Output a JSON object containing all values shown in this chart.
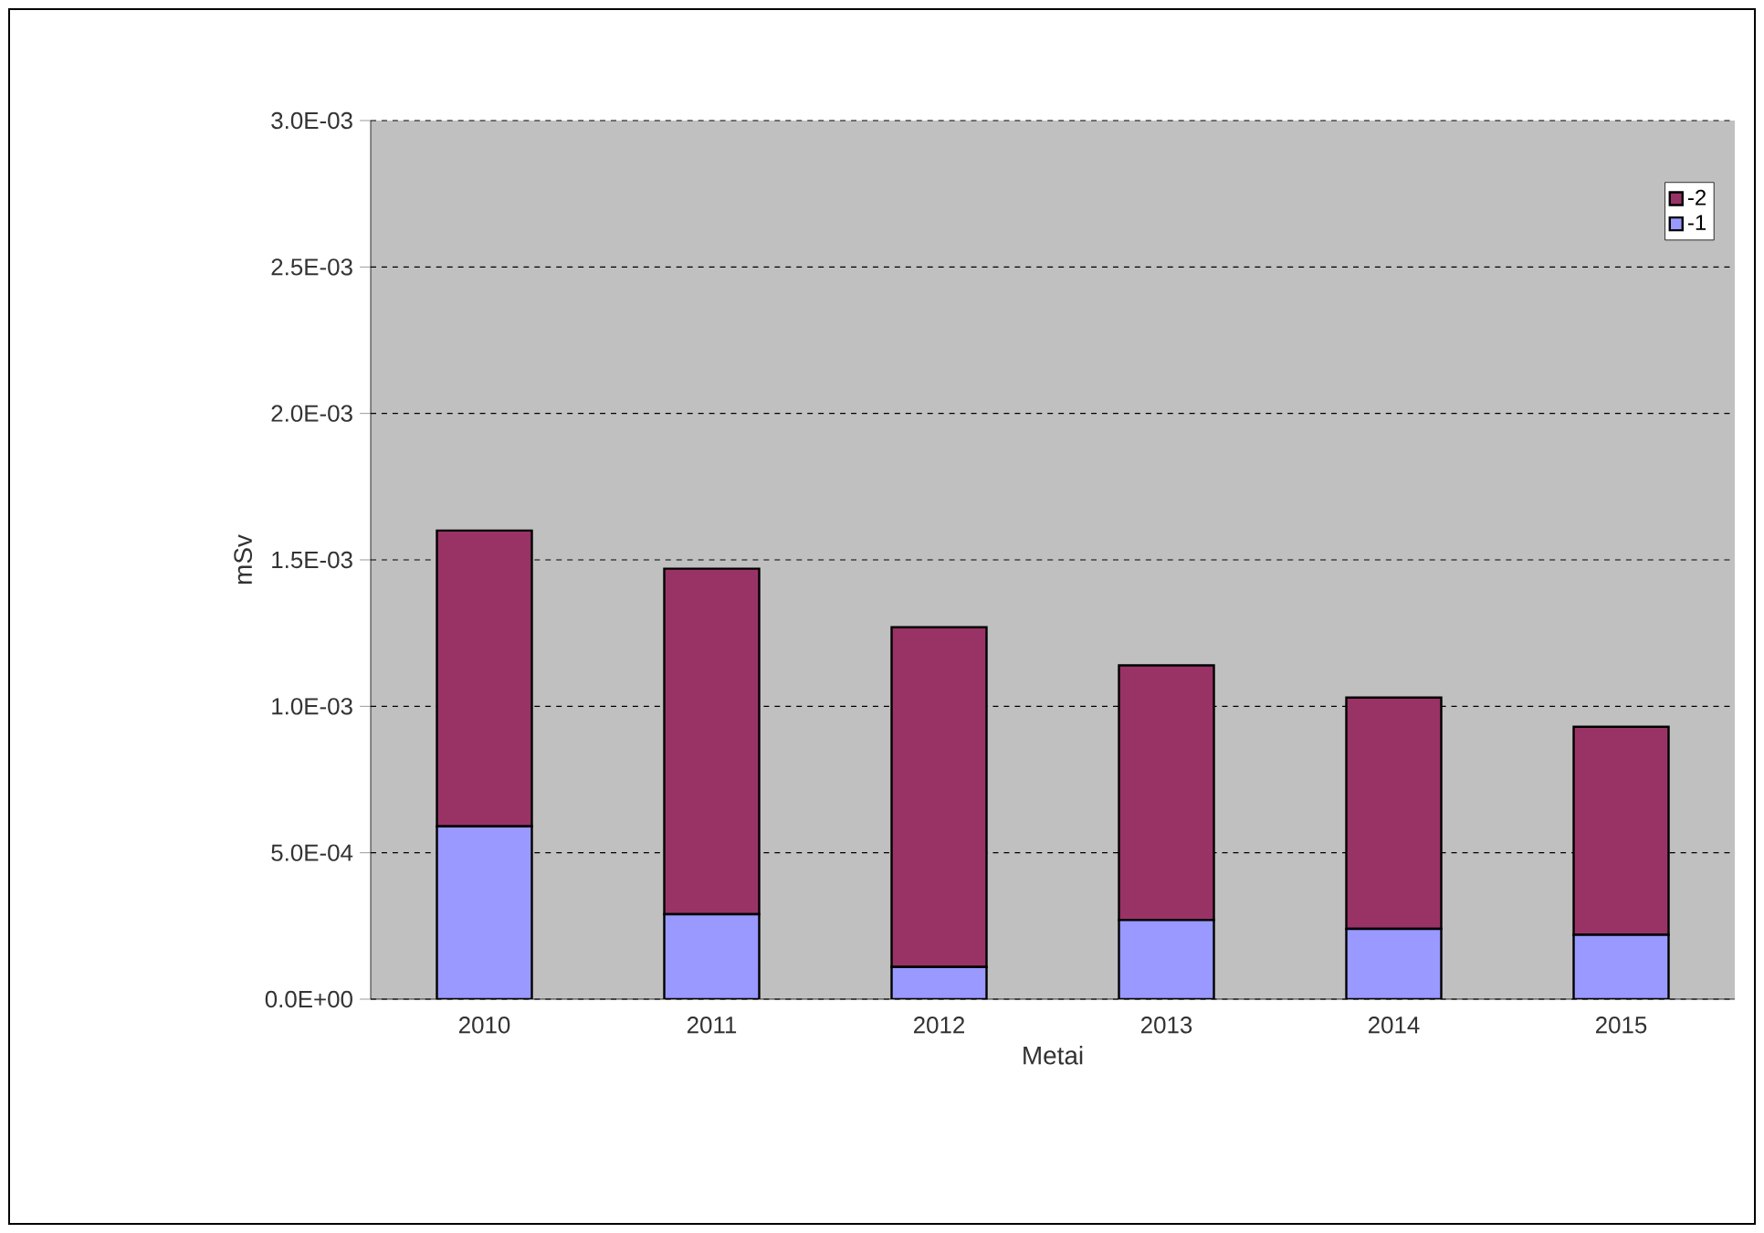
{
  "chart_data": {
    "type": "bar",
    "xlabel": "Metai",
    "ylabel": "mSv",
    "categories": [
      "2010",
      "2011",
      "2012",
      "2013",
      "2014",
      "2015"
    ],
    "stacked": true,
    "series": [
      {
        "name": "-1",
        "color": "#9999ff",
        "values": [
          0.00059,
          0.00029,
          0.00011,
          0.00027,
          0.00024,
          0.00022
        ]
      },
      {
        "name": "-2",
        "color": "#993366",
        "values": [
          0.00101,
          0.00118,
          0.00116,
          0.00087,
          0.00079,
          0.00071
        ]
      }
    ],
    "ylim": [
      0,
      0.003
    ],
    "yticks": [
      {
        "value": 0,
        "label": "0.0E+00"
      },
      {
        "value": 0.0005,
        "label": "5.0E-04"
      },
      {
        "value": 0.001,
        "label": "1.0E-03"
      },
      {
        "value": 0.0015,
        "label": "1.5E-03"
      },
      {
        "value": 0.002,
        "label": "2.0E-03"
      },
      {
        "value": 0.0025,
        "label": "2.5E-03"
      },
      {
        "value": 0.003,
        "label": "3.0E-03"
      }
    ],
    "grid": "y",
    "legend": "top right"
  }
}
